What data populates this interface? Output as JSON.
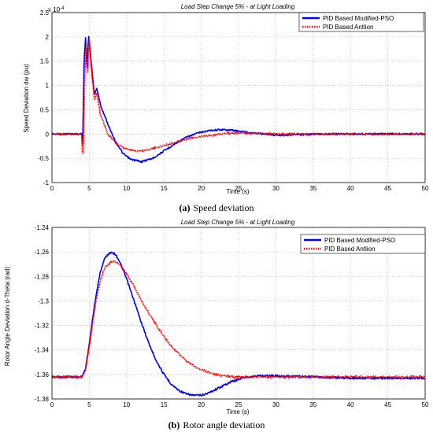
{
  "chart_data": [
    {
      "type": "line",
      "title": "Load Step Change 5% - at Light Loading",
      "xlabel": "Time (s)",
      "ylabel": "Speed Deviation dw (pu)",
      "exponent_label": "x 10",
      "exponent_power": "-4",
      "xlim": [
        0,
        50
      ],
      "ylim": [
        -1,
        2.5
      ],
      "xticks": [
        0,
        5,
        10,
        15,
        20,
        25,
        30,
        35,
        40,
        45,
        50
      ],
      "yticks": [
        -1,
        -0.5,
        0,
        0.5,
        1,
        1.5,
        2,
        2.5
      ],
      "ytick_labels": [
        "-1",
        "-0.5",
        "0",
        "0.5",
        "1",
        "1.5",
        "2",
        "2.5"
      ],
      "grid": true,
      "legend_position": "top-right",
      "caption_letter": "(a)",
      "caption_text": "Speed deviation",
      "series": [
        {
          "name": "PID Based Modified-PSO",
          "color": "#0000ff",
          "style": "solid",
          "points": [
            [
              0,
              0
            ],
            [
              4,
              0
            ],
            [
              4.1,
              -0.3
            ],
            [
              4.3,
              1.5
            ],
            [
              4.5,
              2.0
            ],
            [
              4.7,
              1.3
            ],
            [
              4.9,
              2.05
            ],
            [
              5.3,
              1.4
            ],
            [
              5.7,
              0.8
            ],
            [
              6.0,
              0.95
            ],
            [
              6.5,
              0.6
            ],
            [
              7.5,
              0.2
            ],
            [
              8.5,
              -0.15
            ],
            [
              9.5,
              -0.4
            ],
            [
              10.5,
              -0.52
            ],
            [
              12,
              -0.57
            ],
            [
              13.5,
              -0.5
            ],
            [
              15,
              -0.35
            ],
            [
              16.5,
              -0.2
            ],
            [
              18,
              -0.07
            ],
            [
              19.5,
              0.02
            ],
            [
              21,
              0.07
            ],
            [
              22.5,
              0.09
            ],
            [
              24,
              0.08
            ],
            [
              25.5,
              0.05
            ],
            [
              27,
              0.02
            ],
            [
              28.5,
              0
            ],
            [
              30,
              -0.02
            ],
            [
              32,
              -0.02
            ],
            [
              34,
              -0.01
            ],
            [
              36,
              0
            ],
            [
              40,
              0
            ],
            [
              45,
              0
            ],
            [
              50,
              0
            ]
          ]
        },
        {
          "name": "PID Based Antlion",
          "color": "#ff0000",
          "style": "dotted",
          "points": [
            [
              0,
              0
            ],
            [
              4,
              0
            ],
            [
              4.1,
              -0.5
            ],
            [
              4.2,
              -0.3
            ],
            [
              4.4,
              1.3
            ],
            [
              4.6,
              1.9
            ],
            [
              4.8,
              1.2
            ],
            [
              5.0,
              1.95
            ],
            [
              5.3,
              1.3
            ],
            [
              5.7,
              0.7
            ],
            [
              6.0,
              0.85
            ],
            [
              6.5,
              0.4
            ],
            [
              7.5,
              0
            ],
            [
              8.5,
              -0.18
            ],
            [
              9.5,
              -0.28
            ],
            [
              10.5,
              -0.33
            ],
            [
              12,
              -0.35
            ],
            [
              13.5,
              -0.3
            ],
            [
              15,
              -0.24
            ],
            [
              16.5,
              -0.17
            ],
            [
              18,
              -0.11
            ],
            [
              19.5,
              -0.06
            ],
            [
              21,
              -0.03
            ],
            [
              22.5,
              0
            ],
            [
              24,
              0.02
            ],
            [
              26,
              0.02
            ],
            [
              28,
              0.01
            ],
            [
              30,
              0
            ],
            [
              35,
              0
            ],
            [
              40,
              0
            ],
            [
              45,
              0
            ],
            [
              50,
              0
            ]
          ]
        }
      ]
    },
    {
      "type": "line",
      "title": "Load Step Change 5% - at Light Loading",
      "xlabel": "Time (s)",
      "ylabel": "Rotor Angle Deviation d-Theta (rad)",
      "xlim": [
        0,
        50
      ],
      "ylim": [
        -1.38,
        -1.24
      ],
      "xticks": [
        0,
        5,
        10,
        15,
        20,
        25,
        30,
        35,
        40,
        45,
        50
      ],
      "yticks": [
        -1.38,
        -1.36,
        -1.34,
        -1.32,
        -1.3,
        -1.28,
        -1.26,
        -1.24
      ],
      "ytick_labels": [
        "-1.38",
        "-1.36",
        "-1.34",
        "-1.32",
        "-1.3",
        "-1.28",
        "-1.26",
        "-1.24"
      ],
      "grid": true,
      "legend_position": "top-right",
      "caption_letter": "(b)",
      "caption_text": "Rotor angle deviation",
      "series": [
        {
          "name": "PID Based Modified-PSO",
          "color": "#0000ff",
          "style": "solid",
          "points": [
            [
              0,
              -1.362
            ],
            [
              4,
              -1.362
            ],
            [
              4.5,
              -1.355
            ],
            [
              5,
              -1.335
            ],
            [
              5.5,
              -1.312
            ],
            [
              6,
              -1.292
            ],
            [
              6.5,
              -1.276
            ],
            [
              7,
              -1.266
            ],
            [
              7.5,
              -1.262
            ],
            [
              8,
              -1.26
            ],
            [
              8.5,
              -1.262
            ],
            [
              9,
              -1.267
            ],
            [
              10,
              -1.282
            ],
            [
              11,
              -1.3
            ],
            [
              12,
              -1.318
            ],
            [
              13,
              -1.335
            ],
            [
              14,
              -1.349
            ],
            [
              15,
              -1.36
            ],
            [
              16,
              -1.368
            ],
            [
              17,
              -1.373
            ],
            [
              18,
              -1.376
            ],
            [
              19,
              -1.377
            ],
            [
              20,
              -1.377
            ],
            [
              21,
              -1.375
            ],
            [
              22,
              -1.372
            ],
            [
              23,
              -1.369
            ],
            [
              24,
              -1.366
            ],
            [
              25,
              -1.364
            ],
            [
              26,
              -1.362
            ],
            [
              28,
              -1.361
            ],
            [
              30,
              -1.361
            ],
            [
              35,
              -1.362
            ],
            [
              40,
              -1.363
            ],
            [
              45,
              -1.363
            ],
            [
              50,
              -1.363
            ]
          ]
        },
        {
          "name": "PID Based Antlion",
          "color": "#ff0000",
          "style": "dotted",
          "points": [
            [
              0,
              -1.362
            ],
            [
              4,
              -1.362
            ],
            [
              4.5,
              -1.356
            ],
            [
              5,
              -1.337
            ],
            [
              5.5,
              -1.316
            ],
            [
              6,
              -1.297
            ],
            [
              6.5,
              -1.283
            ],
            [
              7,
              -1.274
            ],
            [
              7.5,
              -1.27
            ],
            [
              8,
              -1.268
            ],
            [
              8.5,
              -1.268
            ],
            [
              9,
              -1.27
            ],
            [
              10,
              -1.278
            ],
            [
              11,
              -1.288
            ],
            [
              12,
              -1.3
            ],
            [
              13,
              -1.31
            ],
            [
              14,
              -1.32
            ],
            [
              15,
              -1.329
            ],
            [
              16,
              -1.337
            ],
            [
              17,
              -1.343
            ],
            [
              18,
              -1.349
            ],
            [
              19,
              -1.353
            ],
            [
              20,
              -1.356
            ],
            [
              21,
              -1.358
            ],
            [
              22,
              -1.36
            ],
            [
              23,
              -1.361
            ],
            [
              24,
              -1.362
            ],
            [
              26,
              -1.362
            ],
            [
              30,
              -1.362
            ],
            [
              35,
              -1.362
            ],
            [
              40,
              -1.362
            ],
            [
              45,
              -1.362
            ],
            [
              50,
              -1.362
            ]
          ]
        }
      ]
    }
  ]
}
